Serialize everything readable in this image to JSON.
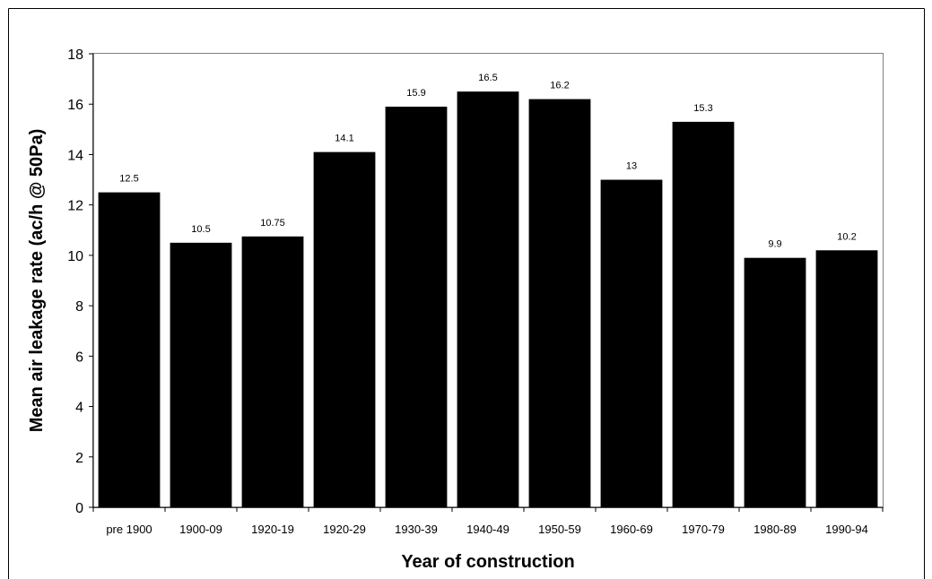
{
  "chart_data": {
    "type": "bar",
    "title": "",
    "xlabel": "Year of construction",
    "ylabel": "Mean air leakage rate (ac/h @ 50Pa)",
    "categories": [
      "pre 1900",
      "1900-09",
      "1920-19",
      "1920-29",
      "1930-39",
      "1940-49",
      "1950-59",
      "1960-69",
      "1970-79",
      "1980-89",
      "1990-94"
    ],
    "values": [
      12.5,
      10.5,
      10.75,
      14.1,
      15.9,
      16.5,
      16.2,
      13,
      15.3,
      9.9,
      10.2
    ],
    "value_labels": [
      "12.5",
      "10.5",
      "10.75",
      "14.1",
      "15.9",
      "16.5",
      "16.2",
      "13",
      "15.3",
      "9.9",
      "10.2"
    ],
    "ylim": [
      0,
      18
    ],
    "yticks": [
      0,
      2,
      4,
      6,
      8,
      10,
      12,
      14,
      16,
      18
    ],
    "grid": false,
    "legend": "none",
    "bar_color": "#000000"
  }
}
